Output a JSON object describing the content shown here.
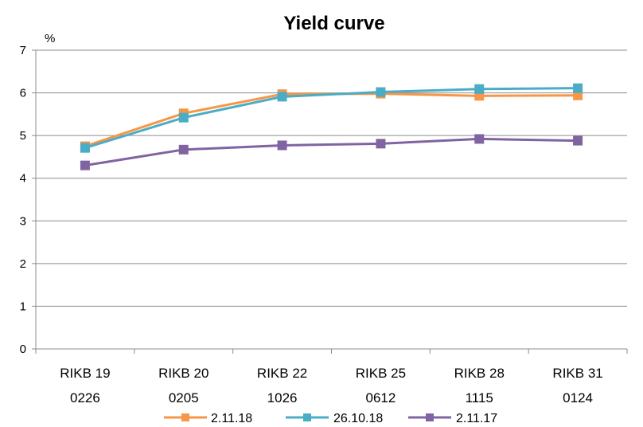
{
  "chart_data": {
    "type": "line",
    "title": "Yield curve",
    "ylabel": "%",
    "xlabel": "",
    "ylim": [
      0,
      7
    ],
    "yticks": [
      0,
      1,
      2,
      3,
      4,
      5,
      6,
      7
    ],
    "grid": "horizontal",
    "legend": "bottom",
    "categories": [
      [
        "RIKB 19",
        "0226"
      ],
      [
        "RIKB 20",
        "0205"
      ],
      [
        "RIKB 22",
        "1026"
      ],
      [
        "RIKB 25",
        "0612"
      ],
      [
        "RIKB 28",
        "1115"
      ],
      [
        "RIKB 31",
        "0124"
      ]
    ],
    "series": [
      {
        "name": "2.11.18",
        "color": "#f79646",
        "values": [
          4.75,
          5.52,
          5.97,
          5.98,
          5.93,
          5.94
        ]
      },
      {
        "name": "26.10.18",
        "color": "#4bacc6",
        "values": [
          4.71,
          5.42,
          5.91,
          6.02,
          6.09,
          6.11
        ]
      },
      {
        "name": "2.11.17",
        "color": "#8064a2",
        "values": [
          4.3,
          4.67,
          4.77,
          4.81,
          4.92,
          4.88
        ]
      }
    ]
  }
}
